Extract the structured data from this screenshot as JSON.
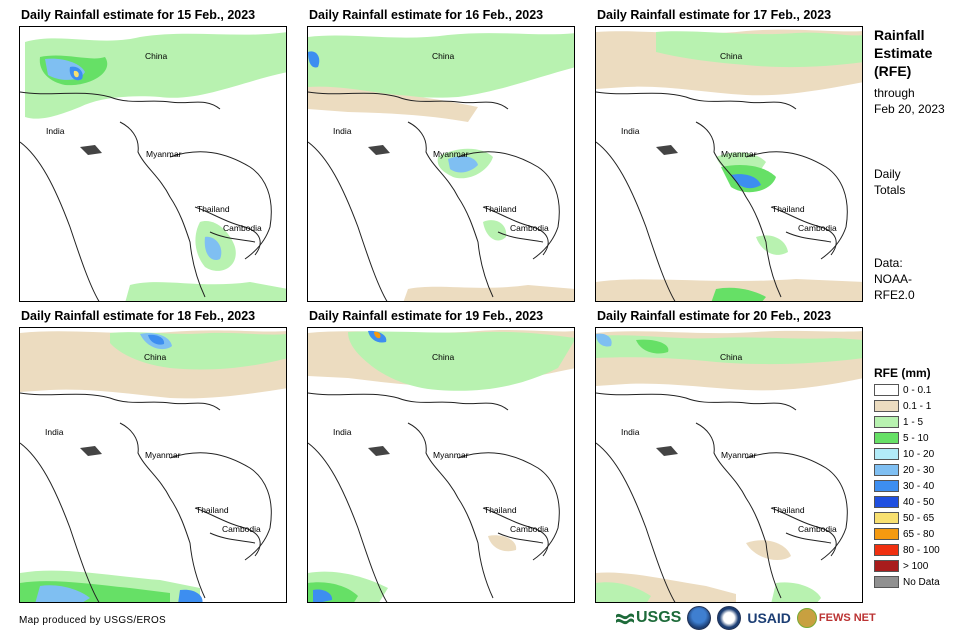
{
  "panels": [
    {
      "title": "Daily Rainfall estimate for 15 Feb., 2023",
      "day": 15
    },
    {
      "title": "Daily Rainfall estimate for 16 Feb., 2023",
      "day": 16
    },
    {
      "title": "Daily Rainfall estimate for 17 Feb., 2023",
      "day": 17
    },
    {
      "title": "Daily Rainfall estimate for 18 Feb., 2023",
      "day": 18
    },
    {
      "title": "Daily Rainfall estimate for 19 Feb., 2023",
      "day": 19
    },
    {
      "title": "Daily Rainfall estimate for 20 Feb., 2023",
      "day": 20
    }
  ],
  "places": {
    "china": "China",
    "india": "India",
    "myanmar": "Myanmar",
    "thailand": "Thailand",
    "cambodia": "Cambodia"
  },
  "side": {
    "title_l1": "Rainfall",
    "title_l2": "Estimate",
    "title_l3": "(RFE)",
    "through_l1": "through",
    "through_l2": "Feb 20, 2023",
    "totals_l1": "Daily",
    "totals_l2": "Totals",
    "data_l1": "Data:",
    "data_l2": "NOAA-",
    "data_l3": "RFE2.0"
  },
  "legend": {
    "title": "RFE (mm)",
    "items": [
      {
        "label": "0 - 0.1",
        "color": "#ffffff"
      },
      {
        "label": "0.1 - 1",
        "color": "#ecdcc0"
      },
      {
        "label": "1 - 5",
        "color": "#b8f2b0"
      },
      {
        "label": "5 - 10",
        "color": "#66e066"
      },
      {
        "label": "10 - 20",
        "color": "#b2ebf8"
      },
      {
        "label": "20 - 30",
        "color": "#7fbff2"
      },
      {
        "label": "30 - 40",
        "color": "#3d8ef0"
      },
      {
        "label": "40 - 50",
        "color": "#1f4fe0"
      },
      {
        "label": "50 - 65",
        "color": "#f8e070"
      },
      {
        "label": "65 - 80",
        "color": "#f59a10"
      },
      {
        "label": "80 - 100",
        "color": "#f03010"
      },
      {
        "label": "> 100",
        "color": "#a81c1c"
      },
      {
        "label": "No Data",
        "color": "#909090"
      }
    ]
  },
  "credit": "Map produced by USGS/EROS",
  "logos": {
    "usgs": "USGS",
    "usaid": "USAID",
    "fews": "FEWS NET"
  },
  "colors": {
    "border": "#222222",
    "tan": "#ecdcc0",
    "light_green": "#b8f2b0",
    "green": "#66e066",
    "light_blue": "#b2ebf8",
    "blue": "#7fbff2",
    "dark_blue": "#3d8ef0"
  }
}
